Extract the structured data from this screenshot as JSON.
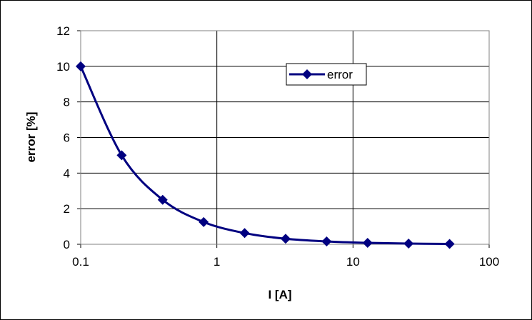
{
  "chart_data": {
    "type": "line",
    "title": "",
    "xlabel": "I [A]",
    "ylabel": "error [%]",
    "x_scale": "log",
    "xlim": [
      0.1,
      100
    ],
    "ylim": [
      0,
      12
    ],
    "x_ticks": [
      "0.1",
      "1",
      "10",
      "100"
    ],
    "y_ticks": [
      "0",
      "2",
      "4",
      "6",
      "8",
      "10",
      "12"
    ],
    "grid": {
      "horizontal": true,
      "vertical": true
    },
    "legend_position": "top-right",
    "series": [
      {
        "name": "error",
        "color": "#000080",
        "marker": "diamond",
        "x": [
          0.1,
          0.2,
          0.4,
          0.8,
          1.6,
          3.2,
          6.4,
          12.8,
          25.6,
          51.2
        ],
        "y": [
          10,
          5,
          2.5,
          1.25,
          0.63,
          0.31,
          0.16,
          0.08,
          0.04,
          0.02
        ]
      }
    ]
  }
}
